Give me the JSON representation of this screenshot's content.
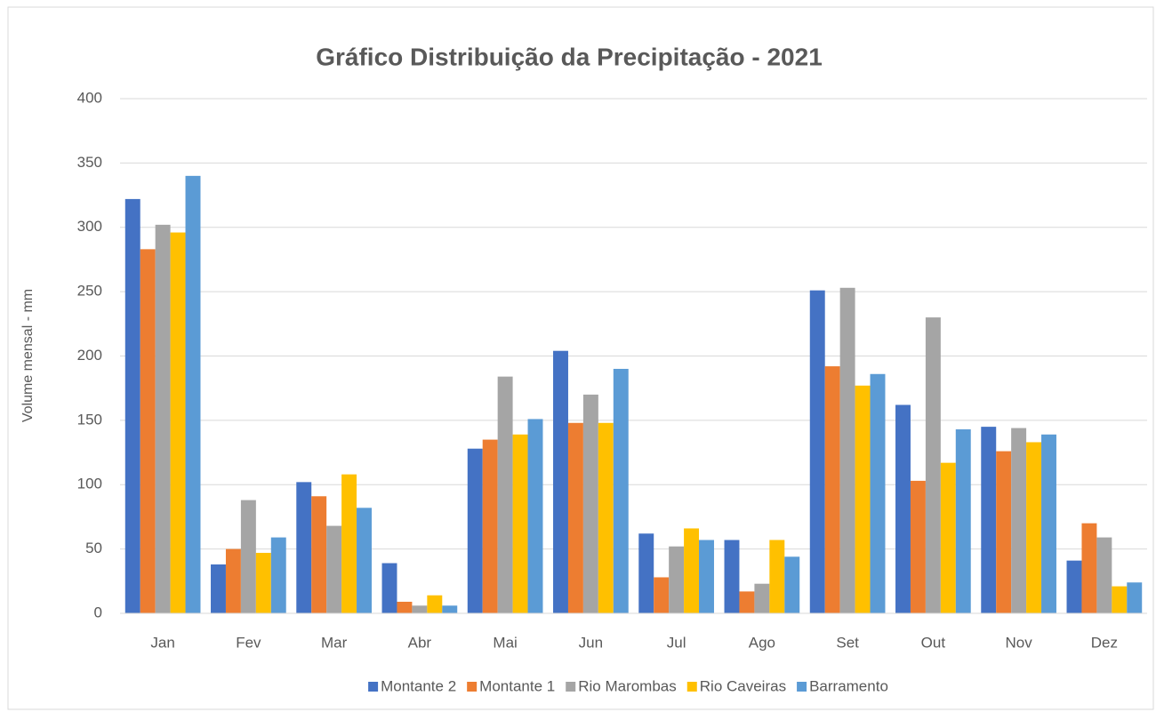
{
  "chart_data": {
    "type": "bar",
    "title": "Gráfico Distribuição da Precipitação - 2021",
    "y_label": "Volume mensal - mm",
    "categories": [
      "Jan",
      "Fev",
      "Mar",
      "Abr",
      "Mai",
      "Jun",
      "Jul",
      "Ago",
      "Set",
      "Out",
      "Nov",
      "Dez"
    ],
    "series": [
      {
        "name": "Montante 2",
        "color": "#4472c4",
        "values": [
          322,
          38,
          102,
          39,
          128,
          204,
          62,
          57,
          251,
          162,
          145,
          41
        ]
      },
      {
        "name": "Montante 1",
        "color": "#ed7d31",
        "values": [
          283,
          50,
          91,
          9,
          135,
          148,
          28,
          17,
          192,
          103,
          126,
          70
        ]
      },
      {
        "name": "Rio Marombas",
        "color": "#a5a5a5",
        "values": [
          302,
          88,
          68,
          6,
          184,
          170,
          52,
          23,
          253,
          230,
          144,
          59
        ]
      },
      {
        "name": "Rio Caveiras",
        "color": "#ffc000",
        "values": [
          296,
          47,
          108,
          14,
          139,
          148,
          66,
          57,
          177,
          117,
          133,
          21
        ]
      },
      {
        "name": "Barramento",
        "color": "#5b9bd5",
        "values": [
          340,
          59,
          82,
          6,
          151,
          190,
          57,
          44,
          186,
          143,
          139,
          24
        ]
      }
    ],
    "ylim": [
      0,
      400
    ],
    "yticks": [
      0,
      50,
      100,
      150,
      200,
      250,
      300,
      350,
      400
    ],
    "grid": true,
    "legend": "bottom"
  }
}
